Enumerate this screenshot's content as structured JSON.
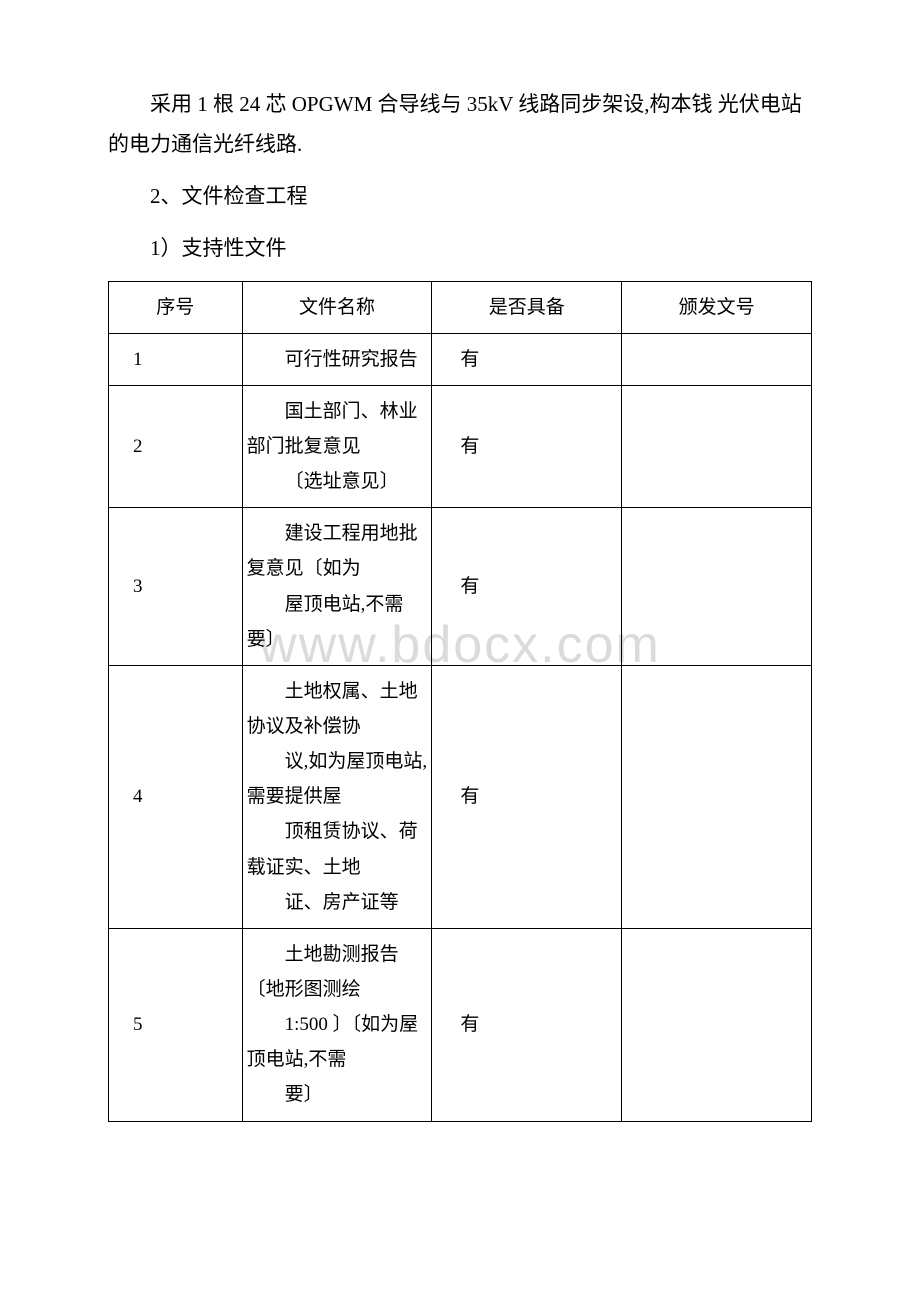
{
  "watermark_text": "www.bdocx.com",
  "para1": "采用 1 根 24 芯 OPGWM 合导线与 35kV 线路同步架设,构本钱 光伏电站的电力通信光纤线路.",
  "para2": "2、文件检查工程",
  "para3": "1）支持性文件",
  "table": {
    "headers": [
      "序号",
      "文件名称",
      "是否具备",
      "颁发文号"
    ],
    "rows": [
      {
        "seq": "1",
        "name_parts": [
          "可行性研究报告"
        ],
        "status": "有",
        "docnum": ""
      },
      {
        "seq": "2",
        "name_parts": [
          "国土部门、林业部门批复意见",
          "〔选址意见〕"
        ],
        "status": "有",
        "docnum": ""
      },
      {
        "seq": "3",
        "name_parts": [
          "建设工程用地批复意见〔如为",
          "屋顶电站,不需要〕"
        ],
        "status": "有",
        "docnum": ""
      },
      {
        "seq": "4",
        "name_parts": [
          "土地权属、土地协议及补偿协",
          "议,如为屋顶电站,需要提供屋",
          "顶租赁协议、荷载证实、土地",
          "证、房产证等"
        ],
        "status": "有",
        "docnum": ""
      },
      {
        "seq": "5",
        "name_parts": [
          "土地勘测报告〔地形图测绘",
          "1:500 〕〔如为屋顶电站,不需",
          "要〕"
        ],
        "status": "有",
        "docnum": ""
      }
    ]
  }
}
